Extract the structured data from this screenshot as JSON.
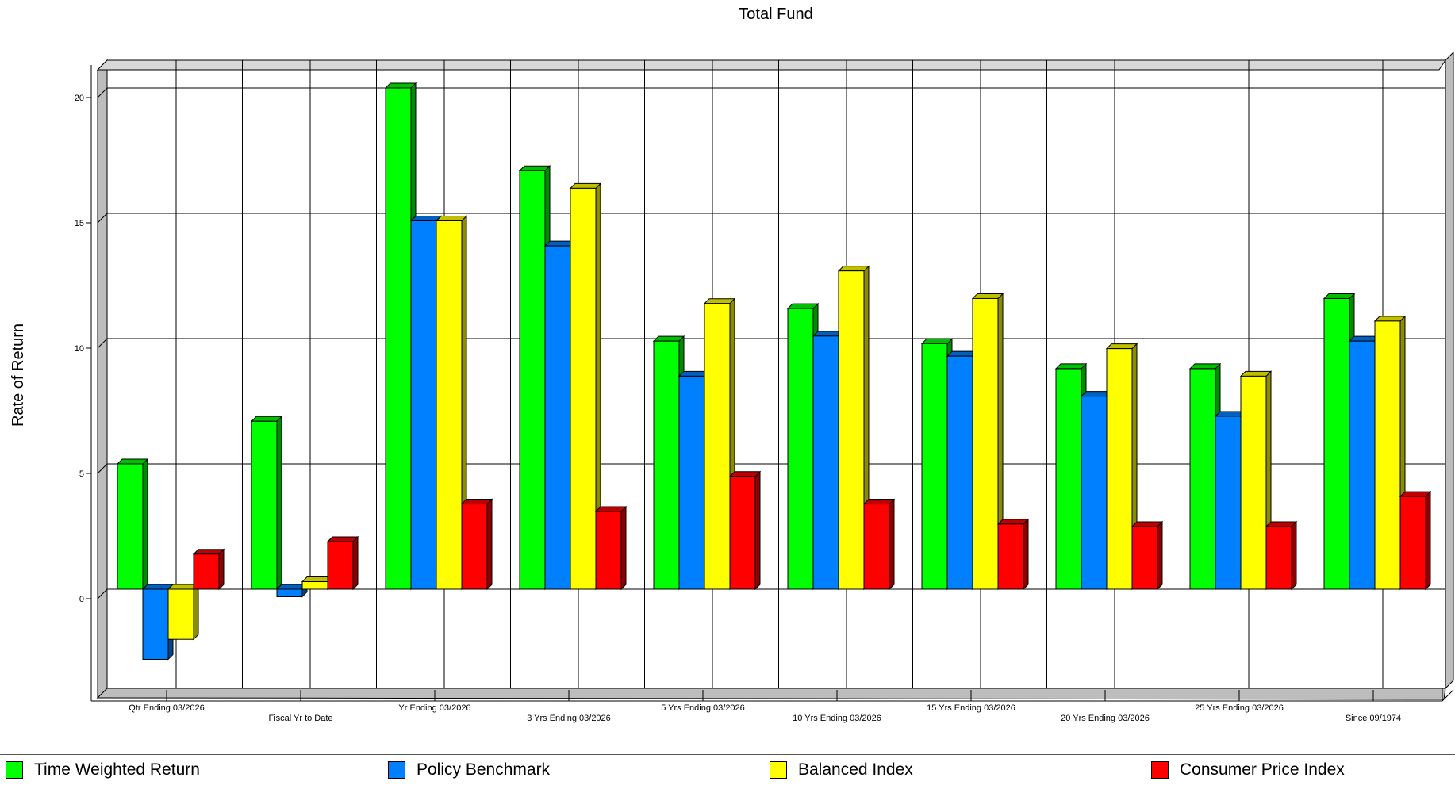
{
  "chart_data": {
    "type": "bar",
    "title": "Total Fund",
    "ylabel": "Rate of Return",
    "xlabel": "",
    "ylim": [
      -4,
      21
    ],
    "yticks": [
      0,
      5,
      10,
      15,
      20
    ],
    "grid": true,
    "legend_position": "bottom",
    "categories": [
      "Qtr Ending 03/2026",
      "Fiscal Yr to Date",
      "Yr Ending 03/2026",
      "3 Yrs Ending 03/2026",
      "5 Yrs Ending 03/2026",
      "10 Yrs Ending 03/2026",
      "15 Yrs Ending 03/2026",
      "20 Yrs Ending 03/2026",
      "25 Yrs Ending 03/2026",
      "Since 09/1974"
    ],
    "series": [
      {
        "name": "Time Weighted Return",
        "color": "#00ff00",
        "values": [
          5.0,
          6.7,
          20.0,
          16.7,
          9.9,
          11.2,
          9.8,
          8.8,
          8.8,
          11.6
        ]
      },
      {
        "name": "Policy Benchmark",
        "color": "#0080ff",
        "values": [
          -2.8,
          -0.3,
          14.7,
          13.7,
          8.5,
          10.1,
          9.3,
          7.7,
          6.9,
          9.9
        ]
      },
      {
        "name": "Balanced Index",
        "color": "#ffff00",
        "values": [
          -2.0,
          0.3,
          14.7,
          16.0,
          11.4,
          12.7,
          11.6,
          9.6,
          8.5,
          10.7
        ]
      },
      {
        "name": "Consumer Price Index",
        "color": "#ff0000",
        "values": [
          1.4,
          1.9,
          3.4,
          3.1,
          4.5,
          3.4,
          2.6,
          2.5,
          2.5,
          3.7
        ]
      }
    ]
  }
}
